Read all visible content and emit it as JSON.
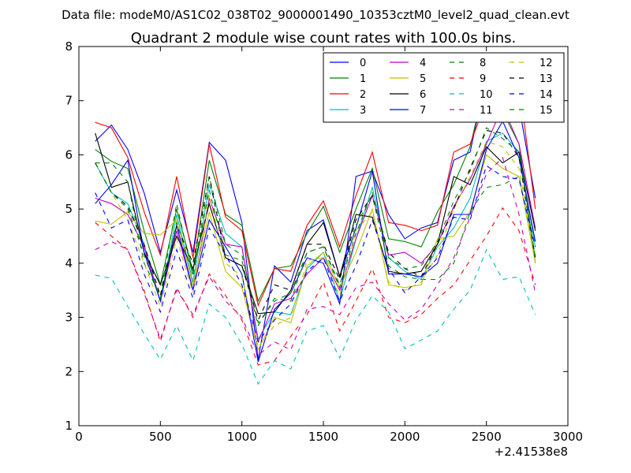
{
  "suptitle": "Data file: modeM0/AS1C02_038T02_9000001490_10353cztM0_level2_quad_clean.evt",
  "chart_data": {
    "type": "line",
    "title": "Quadrant 2 module wise count rates with 100.0s bins.",
    "xlabel": "",
    "ylabel": "",
    "x_offset_label": "+2.41538e8",
    "xlim": [
      0,
      3000
    ],
    "ylim": [
      1,
      8
    ],
    "xticks": [
      0,
      500,
      1000,
      1500,
      2000,
      2500,
      3000
    ],
    "yticks": [
      1,
      2,
      3,
      4,
      5,
      6,
      7,
      8
    ],
    "grid": false,
    "legend_position": "top-right",
    "legend_columns": 4,
    "x": [
      100,
      200,
      300,
      400,
      500,
      600,
      700,
      800,
      900,
      1000,
      1100,
      1200,
      1300,
      1400,
      1500,
      1600,
      1700,
      1800,
      1900,
      2000,
      2100,
      2200,
      2300,
      2400,
      2500,
      2600,
      2700,
      2800
    ],
    "series": [
      {
        "name": "0",
        "color": "#0000ff",
        "dash": "solid",
        "values": [
          6.25,
          6.55,
          6.1,
          5.3,
          4.2,
          5.35,
          4.2,
          6.23,
          5.9,
          4.75,
          2.22,
          3.95,
          3.65,
          4.6,
          4.8,
          3.75,
          4.65,
          5.7,
          4.9,
          4.45,
          4.65,
          4.75,
          5.9,
          6.05,
          7.47,
          7.3,
          6.9,
          5.2
        ]
      },
      {
        "name": "1",
        "color": "#008000",
        "dash": "solid",
        "values": [
          6.1,
          5.88,
          5.75,
          4.6,
          3.6,
          5.0,
          3.85,
          5.9,
          4.9,
          4.7,
          3.3,
          3.9,
          3.95,
          4.55,
          5.05,
          4.2,
          5.0,
          5.75,
          4.45,
          4.4,
          4.3,
          4.95,
          5.45,
          6.15,
          7.42,
          6.8,
          6.2,
          4.0
        ]
      },
      {
        "name": "2",
        "color": "#ff0000",
        "dash": "solid",
        "values": [
          6.6,
          6.5,
          5.95,
          4.95,
          4.15,
          5.6,
          4.1,
          6.2,
          4.85,
          4.6,
          3.22,
          3.9,
          3.85,
          4.7,
          5.15,
          4.3,
          5.25,
          6.05,
          4.75,
          4.7,
          4.6,
          4.7,
          6.05,
          6.2,
          7.0,
          7.15,
          7.33,
          5.0
        ]
      },
      {
        "name": "3",
        "color": "#00bfbf",
        "dash": "solid",
        "values": [
          5.85,
          5.3,
          5.1,
          4.35,
          3.3,
          4.9,
          3.65,
          5.45,
          4.55,
          4.3,
          2.6,
          3.1,
          3.05,
          3.9,
          4.2,
          3.3,
          4.45,
          5.4,
          4.1,
          3.85,
          3.7,
          4.3,
          4.65,
          5.2,
          6.25,
          6.4,
          6.05,
          4.3
        ]
      },
      {
        "name": "4",
        "color": "#bf00bf",
        "dash": "solid",
        "values": [
          5.2,
          5.1,
          4.9,
          4.3,
          3.3,
          4.6,
          3.5,
          5.2,
          4.35,
          4.3,
          2.55,
          3.25,
          3.35,
          3.8,
          4.1,
          3.5,
          4.45,
          5.25,
          4.15,
          4.2,
          4.0,
          4.35,
          5.05,
          5.55,
          6.2,
          6.9,
          6.2,
          4.65
        ]
      },
      {
        "name": "5",
        "color": "#bfbf00",
        "dash": "solid",
        "values": [
          4.78,
          4.72,
          4.95,
          4.55,
          4.52,
          4.8,
          3.6,
          4.95,
          3.85,
          3.55,
          2.4,
          3.0,
          2.9,
          3.95,
          4.2,
          3.55,
          4.2,
          5.0,
          3.6,
          3.55,
          3.6,
          4.45,
          4.5,
          4.95,
          6.0,
          5.75,
          5.6,
          4.0
        ]
      },
      {
        "name": "6",
        "color": "#000000",
        "dash": "solid",
        "values": [
          6.4,
          5.4,
          5.5,
          4.2,
          3.6,
          4.5,
          3.9,
          5.1,
          4.1,
          3.95,
          3.07,
          3.1,
          3.5,
          4.35,
          4.75,
          3.75,
          4.9,
          4.85,
          3.85,
          3.8,
          3.85,
          4.35,
          5.6,
          5.45,
          6.15,
          5.85,
          6.05,
          4.6
        ]
      },
      {
        "name": "7",
        "color": "#0000ff",
        "dash": "solid",
        "values": [
          5.1,
          5.45,
          5.9,
          4.2,
          3.3,
          4.7,
          3.5,
          4.8,
          4.3,
          3.8,
          2.18,
          3.15,
          3.45,
          4.1,
          4.0,
          3.25,
          5.6,
          5.7,
          3.8,
          3.8,
          3.75,
          4.0,
          4.9,
          4.9,
          6.1,
          6.62,
          5.95,
          4.4
        ]
      },
      {
        "name": "8",
        "color": "#008000",
        "dash": "dashed",
        "values": [
          5.85,
          5.85,
          5.5,
          4.0,
          3.4,
          5.1,
          3.75,
          5.6,
          4.35,
          4.15,
          2.9,
          3.3,
          3.45,
          4.2,
          4.3,
          3.55,
          4.7,
          5.25,
          3.95,
          3.75,
          3.7,
          3.7,
          4.0,
          4.95,
          5.4,
          5.45,
          5.6,
          4.15
        ]
      },
      {
        "name": "9",
        "color": "#ff0000",
        "dash": "dashed",
        "values": [
          4.75,
          4.5,
          4.25,
          3.5,
          2.55,
          3.55,
          3.0,
          3.8,
          3.4,
          2.95,
          2.12,
          2.2,
          2.65,
          3.05,
          3.65,
          2.75,
          3.3,
          3.9,
          3.0,
          2.9,
          3.05,
          3.35,
          3.6,
          4.05,
          4.5,
          5.02,
          4.6,
          3.6
        ]
      },
      {
        "name": "10",
        "color": "#00bfbf",
        "dash": "dashed",
        "values": [
          3.78,
          3.72,
          3.2,
          2.7,
          2.22,
          2.85,
          2.2,
          3.25,
          3.0,
          2.5,
          1.77,
          2.2,
          2.05,
          2.75,
          2.85,
          2.25,
          2.95,
          3.4,
          3.1,
          2.42,
          2.58,
          2.75,
          3.15,
          3.5,
          4.25,
          3.7,
          3.75,
          3.05
        ]
      },
      {
        "name": "11",
        "color": "#bf00bf",
        "dash": "dashed",
        "values": [
          4.25,
          4.4,
          4.25,
          3.45,
          2.6,
          3.5,
          3.05,
          3.75,
          3.3,
          3.0,
          2.3,
          2.55,
          2.4,
          3.15,
          3.2,
          3.05,
          3.55,
          3.65,
          3.25,
          2.95,
          3.15,
          3.6,
          4.1,
          4.85,
          5.65,
          5.95,
          4.9,
          3.45
        ]
      },
      {
        "name": "12",
        "color": "#bfbf00",
        "dash": "dashed",
        "values": [
          5.85,
          5.3,
          4.8,
          4.0,
          3.2,
          4.45,
          3.45,
          5.25,
          4.0,
          3.75,
          2.45,
          2.85,
          3.0,
          4.05,
          4.1,
          3.4,
          4.6,
          4.95,
          3.65,
          3.5,
          3.65,
          4.15,
          5.0,
          5.6,
          6.25,
          6.15,
          5.75,
          4.1
        ]
      },
      {
        "name": "13",
        "color": "#000000",
        "dash": "dashed",
        "values": [
          5.85,
          5.3,
          5.05,
          4.35,
          3.4,
          4.7,
          4.0,
          5.6,
          4.1,
          3.95,
          2.95,
          3.6,
          3.5,
          4.35,
          4.35,
          3.7,
          4.8,
          5.25,
          4.2,
          3.9,
          3.75,
          4.35,
          5.0,
          5.75,
          6.45,
          6.4,
          5.95,
          4.1
        ]
      },
      {
        "name": "14",
        "color": "#0000ff",
        "dash": "dashed",
        "values": [
          5.3,
          4.65,
          4.8,
          3.8,
          3.1,
          4.25,
          3.35,
          4.65,
          4.15,
          3.6,
          2.55,
          2.95,
          3.25,
          3.85,
          4.1,
          3.3,
          3.95,
          4.8,
          3.9,
          3.45,
          3.75,
          4.1,
          4.85,
          4.8,
          5.8,
          5.6,
          5.55,
          4.3
        ]
      },
      {
        "name": "15",
        "color": "#008000",
        "dash": "dashed",
        "values": [
          5.85,
          5.3,
          5.0,
          4.15,
          3.35,
          4.75,
          3.8,
          5.35,
          4.15,
          4.05,
          2.85,
          3.35,
          3.3,
          4.2,
          4.3,
          3.6,
          4.55,
          5.3,
          4.1,
          3.9,
          3.95,
          4.4,
          5.15,
          5.7,
          6.5,
          6.3,
          6.05,
          4.1
        ]
      }
    ]
  }
}
